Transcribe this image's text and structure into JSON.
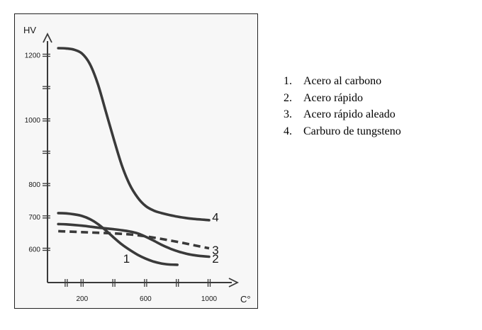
{
  "chart_data": {
    "type": "line",
    "ylabel": "HV",
    "xlabel": "C°",
    "xlim": [
      0,
      1100
    ],
    "ylim": [
      560,
      1300
    ],
    "x_ticks": [
      {
        "value": 100,
        "label": ""
      },
      {
        "value": 200,
        "label": "200"
      },
      {
        "value": 400,
        "label": ""
      },
      {
        "value": 600,
        "label": "600"
      },
      {
        "value": 800,
        "label": ""
      },
      {
        "value": 1000,
        "label": "1000"
      }
    ],
    "y_ticks": [
      {
        "value": 600,
        "label": "600"
      },
      {
        "value": 700,
        "label": "700"
      },
      {
        "value": 800,
        "label": "800"
      },
      {
        "value": 900,
        "label": ""
      },
      {
        "value": 1000,
        "label": "1000"
      },
      {
        "value": 1100,
        "label": ""
      },
      {
        "value": 1200,
        "label": "1200"
      }
    ],
    "series": [
      {
        "name": "1",
        "style": "solid",
        "x": [
          50,
          100,
          150,
          200,
          250,
          300,
          350,
          400,
          450,
          500,
          550,
          600,
          650,
          700,
          750,
          800
        ],
        "y": [
          712,
          711,
          708,
          703,
          693,
          678,
          658,
          636,
          615,
          598,
          583,
          571,
          562,
          556,
          553,
          552
        ]
      },
      {
        "name": "2",
        "style": "solid",
        "x": [
          50,
          100,
          200,
          300,
          400,
          450,
          500,
          550,
          600,
          650,
          700,
          750,
          800,
          850,
          900,
          950,
          1000
        ],
        "y": [
          678,
          677,
          673,
          667,
          662,
          659,
          655,
          649,
          639,
          627,
          614,
          603,
          594,
          587,
          582,
          579,
          577
        ]
      },
      {
        "name": "3",
        "style": "dashed",
        "x": [
          50,
          100,
          200,
          300,
          400,
          500,
          600,
          700,
          800,
          900,
          1000
        ],
        "y": [
          656,
          655,
          653,
          651,
          649,
          646,
          640,
          632,
          623,
          613,
          603
        ]
      },
      {
        "name": "4",
        "style": "solid",
        "x": [
          50,
          100,
          150,
          200,
          250,
          300,
          350,
          400,
          450,
          500,
          550,
          600,
          650,
          700,
          750,
          800,
          850,
          900,
          950,
          1000
        ],
        "y": [
          1222,
          1221,
          1217,
          1205,
          1172,
          1110,
          1025,
          940,
          860,
          800,
          760,
          734,
          720,
          712,
          706,
          701,
          697,
          694,
          692,
          690
        ]
      }
    ],
    "annotations": [
      {
        "text": "1",
        "x": 480,
        "y": 571
      },
      {
        "text": "2",
        "x": 1040,
        "y": 571
      },
      {
        "text": "3",
        "x": 1040,
        "y": 598
      },
      {
        "text": "4",
        "x": 1040,
        "y": 700
      }
    ],
    "legend": {
      "placement": "right",
      "items": [
        {
          "num": "1.",
          "label": "Acero al carbono"
        },
        {
          "num": "2.",
          "label": "Acero rápido"
        },
        {
          "num": "3.",
          "label": "Acero rápido aleado"
        },
        {
          "num": "4.",
          "label": "Carburo de tungsteno"
        }
      ]
    },
    "grid": false
  }
}
